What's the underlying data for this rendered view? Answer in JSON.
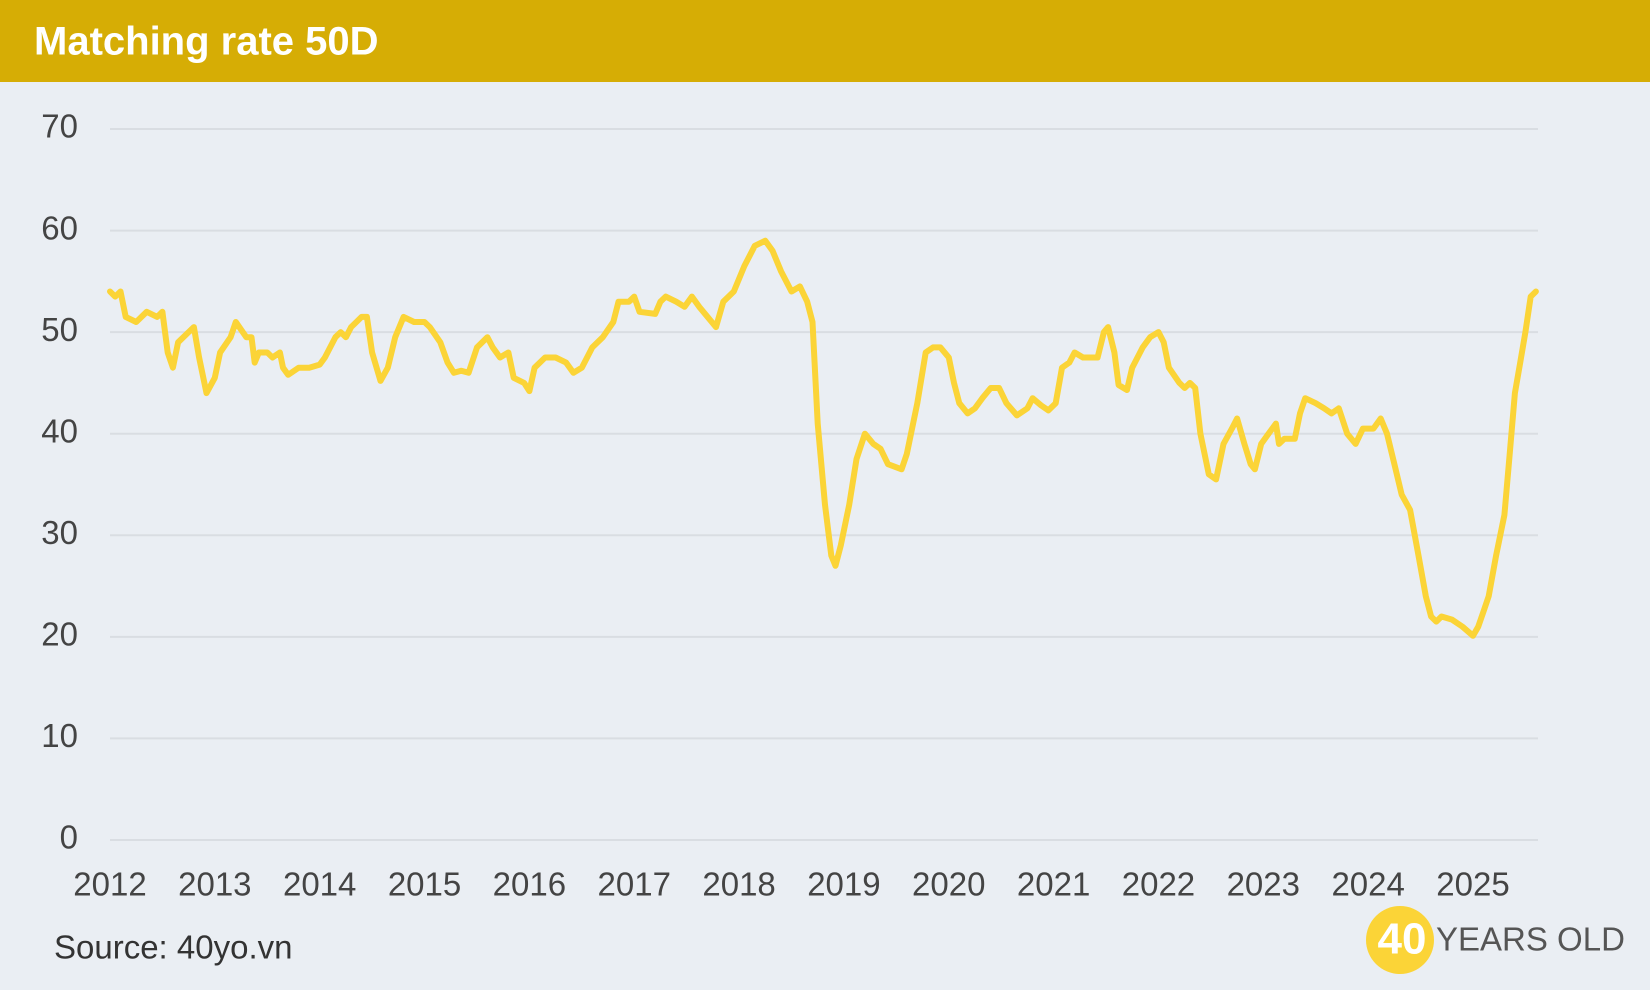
{
  "chart_data": {
    "type": "line",
    "title": "Matching rate 50D",
    "source": "Source: 40yo.vn",
    "logo": {
      "number": "40",
      "text": "YEARS OLD"
    },
    "color": "#fbd437",
    "grid": true,
    "xlim": [
      2012,
      2025.62
    ],
    "xticks": [
      2012,
      2013,
      2014,
      2015,
      2016,
      2017,
      2018,
      2019,
      2020,
      2021,
      2022,
      2023,
      2024,
      2025
    ],
    "ylim": [
      0,
      70
    ],
    "yticks": [
      0,
      10,
      20,
      30,
      40,
      50,
      60,
      70
    ],
    "x": [
      2012.0,
      2012.05,
      2012.1,
      2012.15,
      2012.25,
      2012.35,
      2012.45,
      2012.5,
      2012.55,
      2012.6,
      2012.65,
      2012.75,
      2012.8,
      2012.85,
      2012.92,
      2013.0,
      2013.05,
      2013.15,
      2013.2,
      2013.3,
      2013.35,
      2013.38,
      2013.42,
      2013.5,
      2013.55,
      2013.62,
      2013.65,
      2013.7,
      2013.8,
      2013.9,
      2014.0,
      2014.05,
      2014.15,
      2014.2,
      2014.25,
      2014.3,
      2014.35,
      2014.4,
      2014.45,
      2014.5,
      2014.58,
      2014.65,
      2014.72,
      2014.8,
      2014.9,
      2015.0,
      2015.05,
      2015.15,
      2015.22,
      2015.28,
      2015.35,
      2015.42,
      2015.5,
      2015.6,
      2015.65,
      2015.72,
      2015.8,
      2015.85,
      2015.95,
      2016.0,
      2016.05,
      2016.15,
      2016.25,
      2016.35,
      2016.42,
      2016.5,
      2016.6,
      2016.7,
      2016.8,
      2016.85,
      2016.95,
      2017.0,
      2017.05,
      2017.2,
      2017.25,
      2017.3,
      2017.4,
      2017.48,
      2017.55,
      2017.62,
      2017.7,
      2017.78,
      2017.85,
      2017.95,
      2018.05,
      2018.15,
      2018.25,
      2018.32,
      2018.4,
      2018.5,
      2018.58,
      2018.65,
      2018.7,
      2018.75,
      2018.82,
      2018.88,
      2018.92,
      2018.97,
      2019.05,
      2019.12,
      2019.2,
      2019.28,
      2019.35,
      2019.42,
      2019.55,
      2019.6,
      2019.7,
      2019.78,
      2019.85,
      2019.92,
      2020.0,
      2020.05,
      2020.1,
      2020.18,
      2020.25,
      2020.32,
      2020.4,
      2020.48,
      2020.55,
      2020.65,
      2020.75,
      2020.8,
      2020.88,
      2020.95,
      2021.02,
      2021.08,
      2021.15,
      2021.2,
      2021.28,
      2021.35,
      2021.42,
      2021.48,
      2021.52,
      2021.58,
      2021.62,
      2021.7,
      2021.75,
      2021.85,
      2021.92,
      2022.0,
      2022.05,
      2022.1,
      2022.2,
      2022.25,
      2022.3,
      2022.35,
      2022.4,
      2022.48,
      2022.55,
      2022.62,
      2022.7,
      2022.75,
      2022.82,
      2022.88,
      2022.92,
      2022.98,
      2023.05,
      2023.12,
      2023.15,
      2023.2,
      2023.3,
      2023.35,
      2023.4,
      2023.5,
      2023.58,
      2023.65,
      2023.72,
      2023.8,
      2023.88,
      2023.95,
      2024.05,
      2024.12,
      2024.18,
      2024.25,
      2024.32,
      2024.4,
      2024.48,
      2024.55,
      2024.6,
      2024.65,
      2024.7,
      2024.8,
      2024.9,
      2025.0,
      2025.05,
      2025.1,
      2025.15,
      2025.22,
      2025.3,
      2025.35,
      2025.4,
      2025.45,
      2025.5,
      2025.55,
      2025.6
    ],
    "values": [
      54,
      53.5,
      54,
      51.5,
      51,
      52,
      51.5,
      52,
      48,
      46.5,
      49,
      50,
      50.5,
      47.5,
      44,
      45.5,
      48,
      49.5,
      51,
      49.5,
      49.5,
      47,
      48,
      48,
      47.5,
      48,
      46.5,
      45.8,
      46.5,
      46.5,
      46.8,
      47.5,
      49.5,
      50,
      49.5,
      50.5,
      51,
      51.5,
      51.5,
      48,
      45.2,
      46.5,
      49.5,
      51.5,
      51,
      51,
      50.5,
      49,
      47,
      46,
      46.2,
      46,
      48.5,
      49.5,
      48.5,
      47.5,
      48,
      45.5,
      45,
      44.2,
      46.5,
      47.5,
      47.5,
      47,
      46,
      46.5,
      48.5,
      49.5,
      51,
      53,
      53,
      53.5,
      52,
      51.8,
      53,
      53.5,
      53,
      52.5,
      53.5,
      52.5,
      51.5,
      50.5,
      53,
      54,
      56.5,
      58.5,
      59,
      58,
      56,
      54,
      54.5,
      53,
      51,
      41,
      33,
      28,
      27,
      29,
      33,
      37.5,
      40,
      39,
      38.5,
      37,
      36.5,
      38,
      43,
      48,
      48.5,
      48.5,
      47.5,
      45,
      43,
      42,
      42.5,
      43.5,
      44.5,
      44.5,
      43,
      41.8,
      42.5,
      43.5,
      42.8,
      42.3,
      43,
      46.5,
      47,
      48,
      47.5,
      47.5,
      47.5,
      50,
      50.5,
      48,
      44.8,
      44.3,
      46.5,
      48.5,
      49.5,
      50,
      49,
      46.5,
      45,
      44.5,
      45,
      44.5,
      40,
      36,
      35.5,
      39,
      40.5,
      41.5,
      39,
      37,
      36.5,
      39,
      40,
      41,
      39,
      39.5,
      39.5,
      42,
      43.5,
      43,
      42.5,
      42,
      42.5,
      40,
      39,
      40.5,
      40.5,
      41.5,
      40,
      37,
      34,
      32.5,
      28,
      24,
      22,
      21.5,
      22,
      21.7,
      21,
      20.1,
      21,
      22.5,
      24,
      28,
      32,
      38,
      44,
      47,
      50,
      53.5,
      54
    ]
  }
}
